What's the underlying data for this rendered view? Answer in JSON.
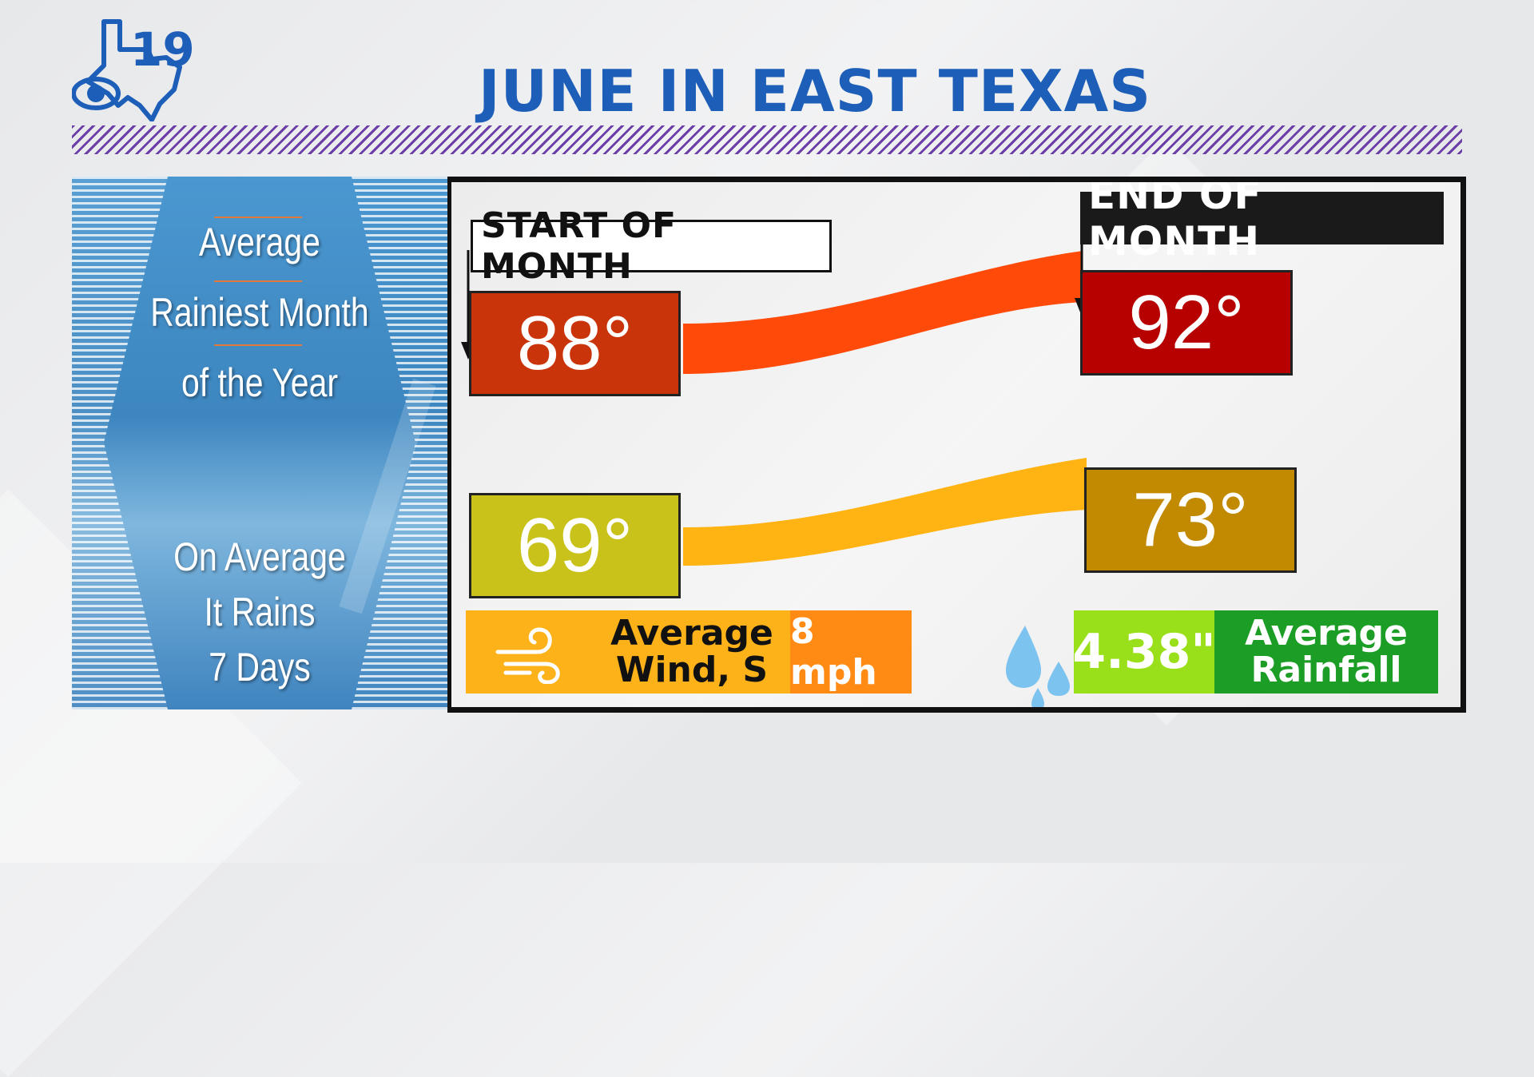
{
  "title": "JUNE IN EAST TEXAS",
  "logo": {
    "number": "19"
  },
  "left_panel": {
    "line1": "Average",
    "line2": "Rainiest Month",
    "line3": "of the Year",
    "line4": "On Average",
    "line5": "It Rains",
    "line6": "7 Days"
  },
  "labels": {
    "start": "START OF MONTH",
    "end": "END OF MONTH"
  },
  "temps": {
    "high_start": "88°",
    "high_end": "92°",
    "low_start": "69°",
    "low_end": "73°"
  },
  "wind": {
    "label_1": "Average",
    "label_2": "Wind, S",
    "value": "8 mph"
  },
  "rain": {
    "value": "4.38\"",
    "label_1": "Average",
    "label_2": "Rainfall"
  },
  "colors": {
    "title": "#1d5fb8",
    "high_start": "#c9340a",
    "high_end": "#b70000",
    "high_band": "#ff4a0a",
    "low_start": "#c8c21a",
    "low_end": "#c28a00",
    "low_band": "#ffb414",
    "wind_bg": "#fdb21a",
    "wind_value_bg": "#ff8a14",
    "rain_value_bg": "#9ae01a",
    "rain_label_bg": "#1c9e26"
  }
}
